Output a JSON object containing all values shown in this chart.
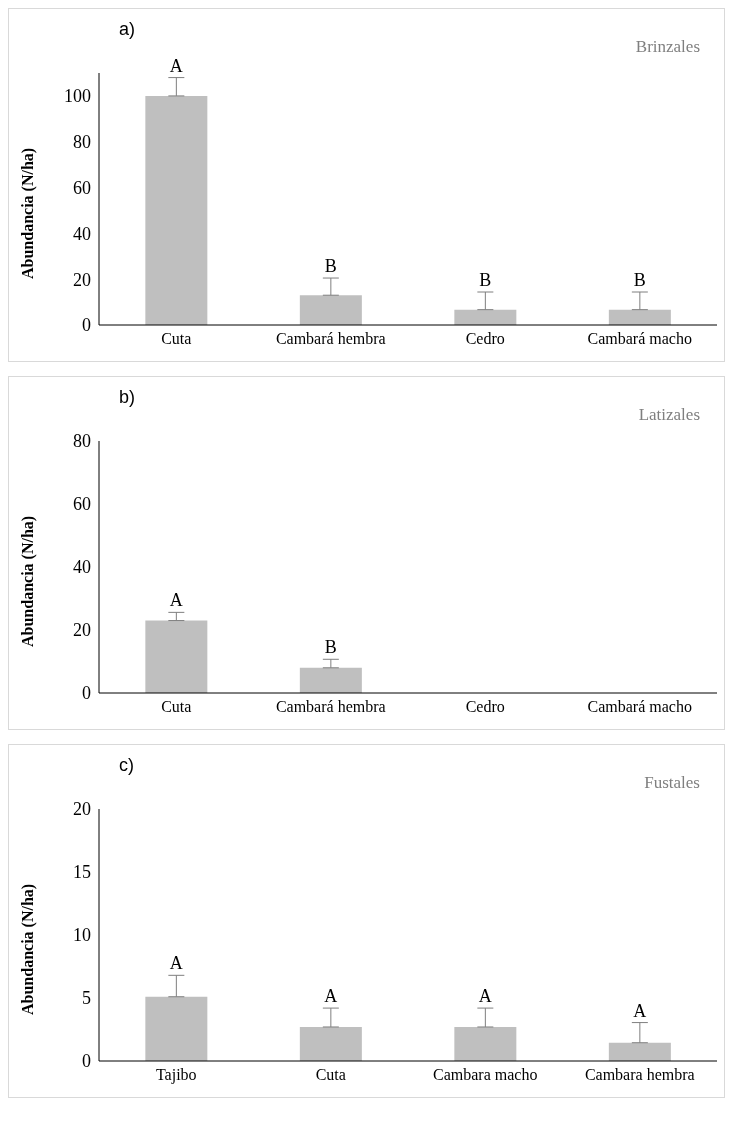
{
  "chart_data": [
    {
      "type": "bar",
      "title": "a)",
      "subtitle": "Brinzales",
      "ylabel": "Abundancia  (N/ha)",
      "categories": [
        "Cuta",
        "Cambará hembra",
        "Cedro",
        "Cambará macho"
      ],
      "series": [
        {
          "color": "#bfbfbf",
          "values": [
            100,
            13,
            6.7,
            6.7
          ],
          "errors": [
            [
              100,
              108
            ],
            [
              13,
              20.5
            ],
            [
              6.7,
              14.4
            ],
            [
              6.7,
              14.4
            ]
          ]
        }
      ],
      "ylim": [
        0,
        110
      ],
      "yticks": [
        0,
        20,
        40,
        60,
        80,
        100
      ],
      "grid": false,
      "legend": false,
      "annotations": [
        {
          "text": "A",
          "x": "Cuta",
          "y": 108
        },
        {
          "text": "B",
          "x": "Cambará hembra",
          "y": 20.5
        },
        {
          "text": "B",
          "x": "Cedro",
          "y": 14.4
        },
        {
          "text": "B",
          "x": "Cambará macho",
          "y": 14.4
        }
      ]
    },
    {
      "type": "bar",
      "title": "b)",
      "subtitle": "Latizales",
      "ylabel": "Abundancia  (N/ha)",
      "categories": [
        "Cuta",
        "Cambará hembra",
        "Cedro",
        "Cambará macho"
      ],
      "series": [
        {
          "color": "#bfbfbf",
          "values": [
            23,
            8,
            0,
            0
          ],
          "errors": [
            [
              23,
              25.6
            ],
            [
              8,
              10.7
            ],
            null,
            null
          ]
        }
      ],
      "ylim": [
        0,
        80
      ],
      "yticks": [
        0,
        20,
        40,
        60,
        80
      ],
      "grid": false,
      "legend": false,
      "annotations": [
        {
          "text": "A",
          "x": "Cuta",
          "y": 25.6
        },
        {
          "text": "B",
          "x": "Cambará hembra",
          "y": 10.7
        }
      ]
    },
    {
      "type": "bar",
      "title": "c)",
      "subtitle": "Fustales",
      "ylabel": "Abundancia  (N/ha)",
      "categories": [
        "Tajibo",
        "Cuta",
        "Cambara macho",
        "Cambara hembra"
      ],
      "series": [
        {
          "color": "#bfbfbf",
          "values": [
            5.1,
            2.7,
            2.7,
            1.45
          ],
          "errors": [
            [
              5.1,
              6.8
            ],
            [
              2.7,
              4.2
            ],
            [
              2.7,
              4.2
            ],
            [
              1.45,
              3.05
            ]
          ]
        }
      ],
      "ylim": [
        0,
        20
      ],
      "yticks": [
        0,
        5,
        10,
        15,
        20
      ],
      "grid": false,
      "legend": false,
      "annotations": [
        {
          "text": "A",
          "x": "Tajibo",
          "y": 6.8
        },
        {
          "text": "A",
          "x": "Cuta",
          "y": 4.2
        },
        {
          "text": "A",
          "x": "Cambara macho",
          "y": 4.2
        },
        {
          "text": "A",
          "x": "Cambara hembra",
          "y": 3.05
        }
      ]
    }
  ]
}
